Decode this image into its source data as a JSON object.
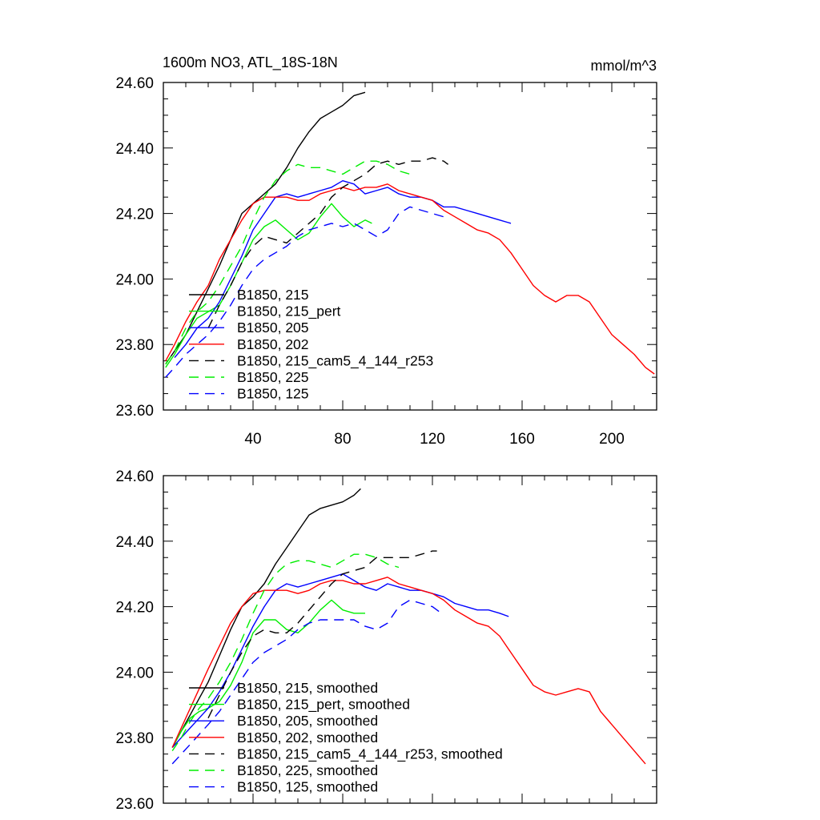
{
  "header": {
    "title": "1600m NO3, ATL_18S-18N",
    "units": "mmol/m^3"
  },
  "colors": {
    "black": "#000000",
    "green": "#00ee00",
    "blue": "#0000ff",
    "red": "#ff0000"
  },
  "chart_data": [
    {
      "type": "line",
      "title": "1600m NO3, ATL_18S-18N",
      "units": "mmol/m^3",
      "xlim": [
        0,
        220
      ],
      "ylim": [
        23.6,
        24.6
      ],
      "x_ticks": [
        40,
        80,
        120,
        160,
        200
      ],
      "x_tick_labels": [
        "40",
        "80",
        "120",
        "160",
        "200"
      ],
      "y_ticks": [
        23.6,
        23.8,
        24.0,
        24.2,
        24.4,
        24.6
      ],
      "y_tick_labels": [
        "23.60",
        "23.80",
        "24.00",
        "24.20",
        "24.40",
        "24.60"
      ],
      "legend_position": "lower-left",
      "series": [
        {
          "name": "B1850, 215",
          "color": "#000000",
          "dash": "solid",
          "x": [
            1,
            5,
            10,
            15,
            20,
            25,
            30,
            35,
            40,
            45,
            50,
            55,
            60,
            65,
            70,
            75,
            80,
            85,
            90
          ],
          "y": [
            23.74,
            23.78,
            23.83,
            23.9,
            23.97,
            24.04,
            24.12,
            24.2,
            24.23,
            24.26,
            24.29,
            24.34,
            24.4,
            24.45,
            24.49,
            24.51,
            24.53,
            24.56,
            24.57
          ]
        },
        {
          "name": "B1850, 215_pert",
          "color": "#00ee00",
          "dash": "solid",
          "x": [
            1,
            5,
            10,
            15,
            20,
            25,
            30,
            35,
            40,
            45,
            50,
            55,
            60,
            65,
            70,
            75,
            80,
            85,
            90,
            93
          ],
          "y": [
            23.73,
            23.77,
            23.83,
            23.88,
            23.9,
            23.92,
            23.98,
            24.05,
            24.12,
            24.16,
            24.18,
            24.15,
            24.12,
            24.14,
            24.19,
            24.23,
            24.19,
            24.16,
            24.18,
            24.17
          ]
        },
        {
          "name": "B1850, 205",
          "color": "#0000ff",
          "dash": "solid",
          "x": [
            5,
            10,
            15,
            20,
            25,
            30,
            35,
            40,
            45,
            50,
            55,
            60,
            65,
            70,
            75,
            80,
            85,
            90,
            95,
            100,
            105,
            110,
            115,
            120,
            125,
            130,
            135,
            140,
            145,
            150,
            155
          ],
          "y": [
            23.76,
            23.8,
            23.85,
            23.88,
            23.93,
            24.0,
            24.07,
            24.15,
            24.2,
            24.25,
            24.26,
            24.25,
            24.26,
            24.27,
            24.28,
            24.3,
            24.29,
            24.26,
            24.27,
            24.28,
            24.26,
            24.25,
            24.25,
            24.24,
            24.22,
            24.22,
            24.21,
            24.2,
            24.19,
            24.18,
            24.17
          ]
        },
        {
          "name": "B1850, 202",
          "color": "#ff0000",
          "dash": "solid",
          "x": [
            1,
            5,
            10,
            15,
            20,
            25,
            30,
            35,
            40,
            45,
            50,
            55,
            60,
            65,
            70,
            75,
            80,
            85,
            90,
            95,
            100,
            105,
            110,
            115,
            120,
            125,
            130,
            135,
            140,
            145,
            150,
            155,
            160,
            165,
            170,
            175,
            180,
            185,
            190,
            195,
            200,
            205,
            210,
            215,
            219
          ],
          "y": [
            23.75,
            23.8,
            23.87,
            23.93,
            23.98,
            24.06,
            24.12,
            24.18,
            24.23,
            24.25,
            24.25,
            24.25,
            24.24,
            24.24,
            24.26,
            24.27,
            24.28,
            24.27,
            24.28,
            24.28,
            24.29,
            24.27,
            24.26,
            24.25,
            24.24,
            24.21,
            24.19,
            24.17,
            24.15,
            24.14,
            24.12,
            24.08,
            24.03,
            23.98,
            23.95,
            23.93,
            23.95,
            23.95,
            23.93,
            23.88,
            23.83,
            23.8,
            23.77,
            23.73,
            23.71
          ]
        },
        {
          "name": "B1850, 215_cam5_4_144_r253",
          "color": "#000000",
          "dash": "dashed",
          "x": [
            20,
            25,
            30,
            35,
            40,
            45,
            50,
            55,
            60,
            65,
            70,
            75,
            80,
            85,
            90,
            95,
            100,
            105,
            110,
            115,
            120,
            125,
            127
          ],
          "y": [
            23.85,
            23.92,
            23.98,
            24.05,
            24.1,
            24.13,
            24.12,
            24.11,
            24.14,
            24.17,
            24.2,
            24.25,
            24.28,
            24.3,
            24.32,
            24.35,
            24.36,
            24.35,
            24.36,
            24.36,
            24.37,
            24.36,
            24.35
          ]
        },
        {
          "name": "B1850, 225",
          "color": "#00ee00",
          "dash": "dashed",
          "x": [
            1,
            5,
            10,
            15,
            20,
            25,
            30,
            35,
            40,
            45,
            50,
            55,
            60,
            65,
            70,
            75,
            80,
            85,
            90,
            95,
            100,
            105,
            110
          ],
          "y": [
            23.74,
            23.78,
            23.85,
            23.9,
            23.93,
            23.98,
            24.04,
            24.1,
            24.18,
            24.25,
            24.3,
            24.33,
            24.35,
            24.34,
            24.34,
            24.33,
            24.32,
            24.34,
            24.36,
            24.36,
            24.35,
            24.33,
            24.32
          ]
        },
        {
          "name": "B1850, 125",
          "color": "#0000ff",
          "dash": "dashed",
          "x": [
            1,
            5,
            10,
            15,
            20,
            25,
            30,
            35,
            40,
            45,
            50,
            55,
            60,
            65,
            70,
            75,
            80,
            85,
            90,
            95,
            100,
            105,
            110,
            115,
            120,
            125
          ],
          "y": [
            23.7,
            23.73,
            23.77,
            23.8,
            23.83,
            23.87,
            23.92,
            23.98,
            24.03,
            24.06,
            24.08,
            24.1,
            24.13,
            24.15,
            24.16,
            24.17,
            24.16,
            24.17,
            24.15,
            24.13,
            24.15,
            24.2,
            24.22,
            24.21,
            24.2,
            24.19
          ]
        }
      ]
    },
    {
      "type": "line",
      "title": "",
      "xlim": [
        0,
        220
      ],
      "ylim": [
        23.6,
        24.6
      ],
      "x_ticks": [
        40,
        80,
        120,
        160,
        200
      ],
      "y_ticks": [
        23.6,
        23.8,
        24.0,
        24.2,
        24.4,
        24.6
      ],
      "y_tick_labels": [
        "23.60",
        "23.80",
        "24.00",
        "24.20",
        "24.40",
        "24.60"
      ],
      "legend_position": "lower-left",
      "series": [
        {
          "name": "B1850, 215, smoothed",
          "color": "#000000",
          "dash": "solid",
          "x": [
            4,
            8,
            12,
            16,
            20,
            25,
            30,
            35,
            40,
            45,
            50,
            55,
            60,
            65,
            70,
            75,
            80,
            85,
            88
          ],
          "y": [
            23.77,
            23.82,
            23.87,
            23.92,
            23.97,
            24.05,
            24.13,
            24.2,
            24.23,
            24.27,
            24.33,
            24.38,
            24.43,
            24.48,
            24.5,
            24.51,
            24.52,
            24.54,
            24.56
          ]
        },
        {
          "name": "B1850, 215_pert, smoothed",
          "color": "#00ee00",
          "dash": "solid",
          "x": [
            4,
            8,
            12,
            16,
            20,
            25,
            30,
            35,
            40,
            45,
            50,
            55,
            60,
            65,
            70,
            75,
            80,
            85,
            90
          ],
          "y": [
            23.77,
            23.82,
            23.86,
            23.88,
            23.89,
            23.91,
            23.96,
            24.03,
            24.12,
            24.16,
            24.16,
            24.13,
            24.12,
            24.15,
            24.19,
            24.22,
            24.19,
            24.18,
            24.18
          ]
        },
        {
          "name": "B1850, 205, smoothed",
          "color": "#0000ff",
          "dash": "solid",
          "x": [
            4,
            8,
            12,
            16,
            20,
            25,
            30,
            35,
            40,
            45,
            50,
            55,
            60,
            65,
            70,
            75,
            80,
            85,
            90,
            95,
            100,
            105,
            110,
            115,
            120,
            125,
            130,
            135,
            140,
            145,
            150,
            154
          ],
          "y": [
            23.77,
            23.8,
            23.83,
            23.86,
            23.89,
            23.94,
            24.0,
            24.07,
            24.14,
            24.2,
            24.25,
            24.27,
            24.26,
            24.27,
            24.28,
            24.29,
            24.3,
            24.28,
            24.26,
            24.25,
            24.27,
            24.26,
            24.25,
            24.25,
            24.24,
            24.23,
            24.21,
            24.2,
            24.19,
            24.19,
            24.18,
            24.17
          ]
        },
        {
          "name": "B1850, 202, smoothed",
          "color": "#ff0000",
          "dash": "solid",
          "x": [
            4,
            8,
            12,
            16,
            20,
            25,
            30,
            35,
            40,
            45,
            50,
            55,
            60,
            65,
            70,
            75,
            80,
            85,
            90,
            95,
            100,
            105,
            110,
            115,
            120,
            125,
            130,
            135,
            140,
            145,
            150,
            155,
            160,
            165,
            170,
            175,
            180,
            185,
            190,
            195,
            200,
            205,
            210,
            215
          ],
          "y": [
            23.77,
            23.83,
            23.89,
            23.95,
            24.01,
            24.08,
            24.15,
            24.2,
            24.24,
            24.25,
            24.25,
            24.25,
            24.24,
            24.25,
            24.27,
            24.28,
            24.28,
            24.27,
            24.27,
            24.28,
            24.29,
            24.27,
            24.26,
            24.25,
            24.24,
            24.22,
            24.19,
            24.17,
            24.15,
            24.14,
            24.11,
            24.06,
            24.01,
            23.96,
            23.94,
            23.93,
            23.94,
            23.95,
            23.94,
            23.88,
            23.84,
            23.8,
            23.76,
            23.72
          ]
        },
        {
          "name": "B1850, 215_cam5_4_144_r253, smoothed",
          "color": "#000000",
          "dash": "dashed",
          "x": [
            20,
            25,
            30,
            35,
            40,
            45,
            50,
            55,
            60,
            65,
            70,
            75,
            80,
            85,
            90,
            95,
            100,
            105,
            110,
            115,
            120,
            122
          ],
          "y": [
            23.86,
            23.93,
            24.0,
            24.06,
            24.11,
            24.13,
            24.12,
            24.12,
            24.15,
            24.19,
            24.23,
            24.27,
            24.3,
            24.31,
            24.32,
            24.35,
            24.35,
            24.35,
            24.35,
            24.36,
            24.37,
            24.37
          ]
        },
        {
          "name": "B1850, 225, smoothed",
          "color": "#00ee00",
          "dash": "dashed",
          "x": [
            4,
            8,
            12,
            16,
            20,
            25,
            30,
            35,
            40,
            45,
            50,
            55,
            60,
            65,
            70,
            75,
            80,
            85,
            90,
            95,
            100,
            105
          ],
          "y": [
            23.76,
            23.8,
            23.85,
            23.89,
            23.92,
            23.97,
            24.03,
            24.1,
            24.18,
            24.25,
            24.3,
            24.33,
            24.34,
            24.34,
            24.33,
            24.32,
            24.34,
            24.36,
            24.36,
            24.35,
            24.33,
            24.32
          ]
        },
        {
          "name": "B1850, 125, smoothed",
          "color": "#0000ff",
          "dash": "dashed",
          "x": [
            4,
            8,
            12,
            16,
            20,
            25,
            30,
            35,
            40,
            45,
            50,
            55,
            60,
            65,
            70,
            75,
            80,
            85,
            90,
            95,
            100,
            105,
            110,
            115,
            120,
            124
          ],
          "y": [
            23.72,
            23.75,
            23.78,
            23.81,
            23.84,
            23.88,
            23.93,
            23.98,
            24.03,
            24.06,
            24.08,
            24.1,
            24.13,
            24.15,
            24.16,
            24.16,
            24.16,
            24.16,
            24.14,
            24.13,
            24.15,
            24.2,
            24.22,
            24.21,
            24.2,
            24.18
          ]
        }
      ]
    }
  ]
}
